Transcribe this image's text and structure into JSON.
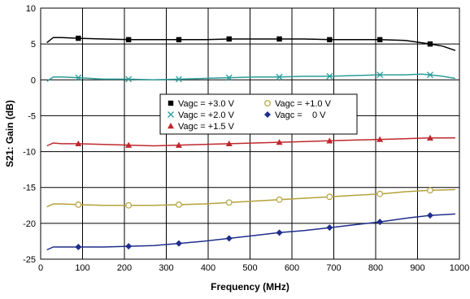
{
  "chart_data": {
    "type": "line",
    "title": "",
    "xlabel": "Frequency (MHz)",
    "ylabel": "S21: Gain (dB)",
    "xlim": [
      0,
      1000
    ],
    "ylim": [
      -25,
      10
    ],
    "xticks": [
      0,
      100,
      200,
      300,
      400,
      500,
      600,
      700,
      800,
      900,
      1000
    ],
    "yticks": [
      -25,
      -20,
      -15,
      -10,
      -5,
      0,
      5,
      10
    ],
    "grid": true,
    "legend_position": "center",
    "series": [
      {
        "name": "Vagc = +3.0 V",
        "color": "#000000",
        "marker": "square",
        "x": [
          15,
          30,
          50,
          90,
          150,
          210,
          270,
          330,
          390,
          450,
          510,
          570,
          630,
          690,
          750,
          810,
          870,
          930,
          960,
          990
        ],
        "y": [
          5.2,
          5.9,
          5.9,
          5.8,
          5.7,
          5.6,
          5.6,
          5.6,
          5.6,
          5.7,
          5.7,
          5.7,
          5.7,
          5.6,
          5.6,
          5.6,
          5.5,
          5.0,
          4.7,
          4.1
        ]
      },
      {
        "name": "Vagc = +2.0 V",
        "color": "#2a9d9a",
        "marker": "x",
        "x": [
          15,
          30,
          50,
          90,
          150,
          210,
          270,
          330,
          390,
          450,
          510,
          570,
          630,
          690,
          750,
          810,
          870,
          910,
          930,
          960,
          990
        ],
        "y": [
          -0.2,
          0.4,
          0.4,
          0.3,
          0.1,
          0.1,
          0.0,
          0.1,
          0.2,
          0.3,
          0.4,
          0.4,
          0.5,
          0.5,
          0.6,
          0.7,
          0.7,
          0.8,
          0.7,
          0.5,
          0.2
        ]
      },
      {
        "name": "Vagc = +1.5 V",
        "color": "#c0282e",
        "marker": "triangle",
        "x": [
          15,
          30,
          50,
          90,
          150,
          210,
          270,
          330,
          390,
          450,
          510,
          570,
          630,
          690,
          750,
          810,
          870,
          930,
          990
        ],
        "y": [
          -9.2,
          -8.8,
          -8.9,
          -8.9,
          -9.0,
          -9.1,
          -9.2,
          -9.1,
          -9.0,
          -8.9,
          -8.8,
          -8.7,
          -8.6,
          -8.5,
          -8.4,
          -8.3,
          -8.2,
          -8.1,
          -8.1
        ]
      },
      {
        "name": "Vagc = +1.0 V",
        "color": "#b5a23b",
        "marker": "circle",
        "x": [
          15,
          30,
          50,
          90,
          150,
          210,
          270,
          330,
          390,
          450,
          510,
          570,
          630,
          690,
          750,
          810,
          870,
          930,
          990
        ],
        "y": [
          -17.7,
          -17.3,
          -17.3,
          -17.4,
          -17.5,
          -17.5,
          -17.5,
          -17.4,
          -17.3,
          -17.1,
          -16.9,
          -16.7,
          -16.5,
          -16.3,
          -16.1,
          -15.9,
          -15.6,
          -15.4,
          -15.3
        ]
      },
      {
        "name": "Vagc =    0 V",
        "color": "#1f2e8c",
        "marker": "diamond",
        "x": [
          15,
          30,
          50,
          90,
          150,
          210,
          270,
          330,
          390,
          450,
          510,
          570,
          630,
          690,
          750,
          810,
          870,
          930,
          990
        ],
        "y": [
          -23.7,
          -23.3,
          -23.3,
          -23.3,
          -23.3,
          -23.2,
          -23.1,
          -22.8,
          -22.5,
          -22.1,
          -21.7,
          -21.3,
          -21.0,
          -20.6,
          -20.2,
          -19.8,
          -19.3,
          -18.9,
          -18.7
        ]
      }
    ],
    "marker_x": [
      90,
      210,
      330,
      450,
      570,
      690,
      810,
      930
    ]
  }
}
